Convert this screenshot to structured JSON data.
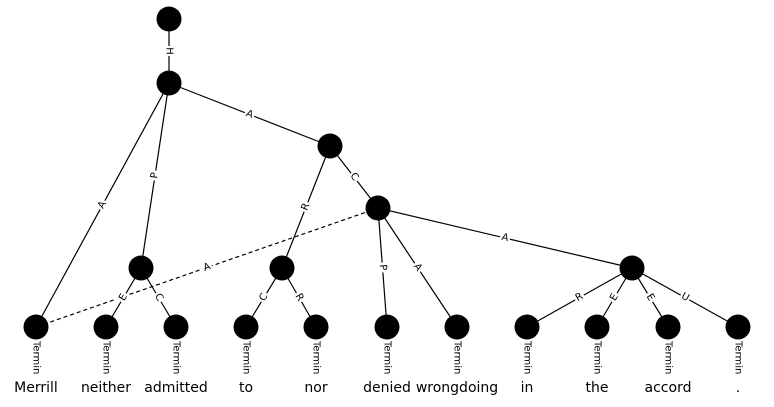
{
  "nodes": [
    "n0",
    "n1",
    "n2",
    "n3",
    "n4",
    "n5",
    "n6",
    "t0",
    "t1",
    "t2",
    "t3",
    "t4",
    "t5",
    "t6",
    "t7",
    "t8",
    "t9",
    "t10"
  ],
  "edges": [
    {
      "from": "n0",
      "to": "n1",
      "label": "H",
      "dashed": false
    },
    {
      "from": "n1",
      "to": "n2",
      "label": "A",
      "dashed": false
    },
    {
      "from": "n1",
      "to": "t0",
      "label": "A",
      "dashed": false
    },
    {
      "from": "n1",
      "to": "n4",
      "label": "P",
      "dashed": false
    },
    {
      "from": "n2",
      "to": "n5",
      "label": "R",
      "dashed": false
    },
    {
      "from": "n2",
      "to": "n3",
      "label": "C",
      "dashed": false
    },
    {
      "from": "n3",
      "to": "t0",
      "label": "A",
      "dashed": true
    },
    {
      "from": "n3",
      "to": "t5",
      "label": "P",
      "dashed": false
    },
    {
      "from": "n3",
      "to": "t6",
      "label": "A",
      "dashed": false
    },
    {
      "from": "n3",
      "to": "n6",
      "label": "A",
      "dashed": false
    },
    {
      "from": "n4",
      "to": "t1",
      "label": "E",
      "dashed": false
    },
    {
      "from": "n4",
      "to": "t2",
      "label": "C",
      "dashed": false
    },
    {
      "from": "n5",
      "to": "t3",
      "label": "C",
      "dashed": false
    },
    {
      "from": "n5",
      "to": "t4",
      "label": "R",
      "dashed": false
    },
    {
      "from": "n6",
      "to": "t7",
      "label": "R",
      "dashed": false
    },
    {
      "from": "n6",
      "to": "t8",
      "label": "E",
      "dashed": false
    },
    {
      "from": "n6",
      "to": "t9",
      "label": "E",
      "dashed": false
    },
    {
      "from": "n6",
      "to": "t10",
      "label": "U",
      "dashed": false
    }
  ],
  "terminal_label": "Termin",
  "words": [
    "Merrill",
    "neither",
    "admitted",
    "to",
    "nor",
    "denied",
    "wrongdoing",
    "in",
    "the",
    "accord",
    "."
  ],
  "colors": {
    "node": "#000000",
    "edge": "#000000",
    "background": "#ffffff"
  }
}
